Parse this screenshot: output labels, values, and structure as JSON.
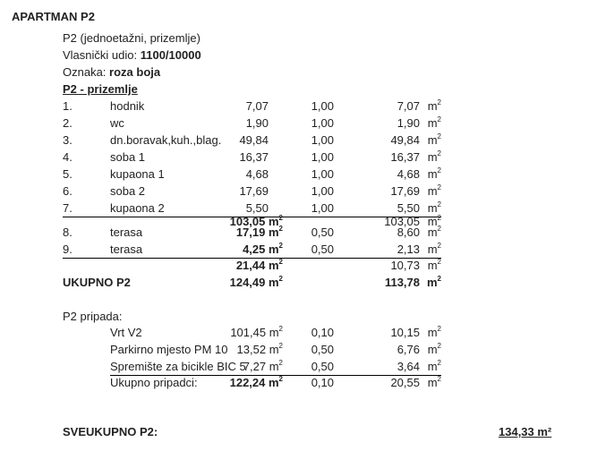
{
  "title": "APARTMAN P2",
  "subtitle": "P2 (jednoetažni, prizemlje)",
  "share_label": "Vlasnički udio: ",
  "share_value": "1100/10000",
  "mark_label": "Oznaka: ",
  "mark_value": "roza boja",
  "section_heading": "P2 - prizemlje",
  "rows": [
    {
      "no": "1.",
      "name": "hodnik",
      "area": "7,07",
      "factor": "1,00",
      "value": "7,07"
    },
    {
      "no": "2.",
      "name": "wc",
      "area": "1,90",
      "factor": "1,00",
      "value": "1,90"
    },
    {
      "no": "3.",
      "name": "dn.boravak,kuh.,blag.",
      "area": "49,84",
      "factor": "1,00",
      "value": "49,84"
    },
    {
      "no": "4.",
      "name": "soba 1",
      "area": "16,37",
      "factor": "1,00",
      "value": "16,37"
    },
    {
      "no": "5.",
      "name": "kupaona 1",
      "area": "4,68",
      "factor": "1,00",
      "value": "4,68"
    },
    {
      "no": "6.",
      "name": "soba 2",
      "area": "17,69",
      "factor": "1,00",
      "value": "17,69"
    },
    {
      "no": "7.",
      "name": "kupaona  2",
      "area": "5,50",
      "factor": "1,00",
      "value": "5,50"
    },
    {
      "no": "",
      "name": "",
      "area": "103,05",
      "factor": "",
      "value": "103,05"
    },
    {
      "no": "8.",
      "name": "terasa",
      "area": "17,19",
      "factor": "0,50",
      "value": "8,60"
    },
    {
      "no": "9.",
      "name": "terasa",
      "area": "4,25",
      "factor": "0,50",
      "value": "2,13"
    },
    {
      "no": "",
      "name": "",
      "area": "21,44",
      "factor": "",
      "value": "10,73"
    },
    {
      "no": "UKUPNO P2",
      "name": "",
      "area": "124,49",
      "factor": "",
      "value": "113,78"
    },
    {
      "no": "P2 pripada:",
      "name": "",
      "area": "",
      "factor": "",
      "value": ""
    },
    {
      "no": "",
      "name": "Vrt  V2",
      "area": "101,45",
      "factor": "0,10",
      "value": "10,15"
    },
    {
      "no": "",
      "name": "Parkirno mjesto PM 10",
      "area": "13,52",
      "factor": "0,50",
      "value": "6,76"
    },
    {
      "no": "",
      "name": "Spremište za bicikle BIC 5",
      "area": "7,27",
      "factor": "0,50",
      "value": "3,64"
    },
    {
      "no": "",
      "name": "Ukupno pripadci:",
      "area": "122,24",
      "factor": "0,10",
      "value": "20,55"
    }
  ],
  "unit": "m²",
  "grand_total_label": "SVEUKUPNO P2:",
  "grand_total_value": "134,33 m²"
}
